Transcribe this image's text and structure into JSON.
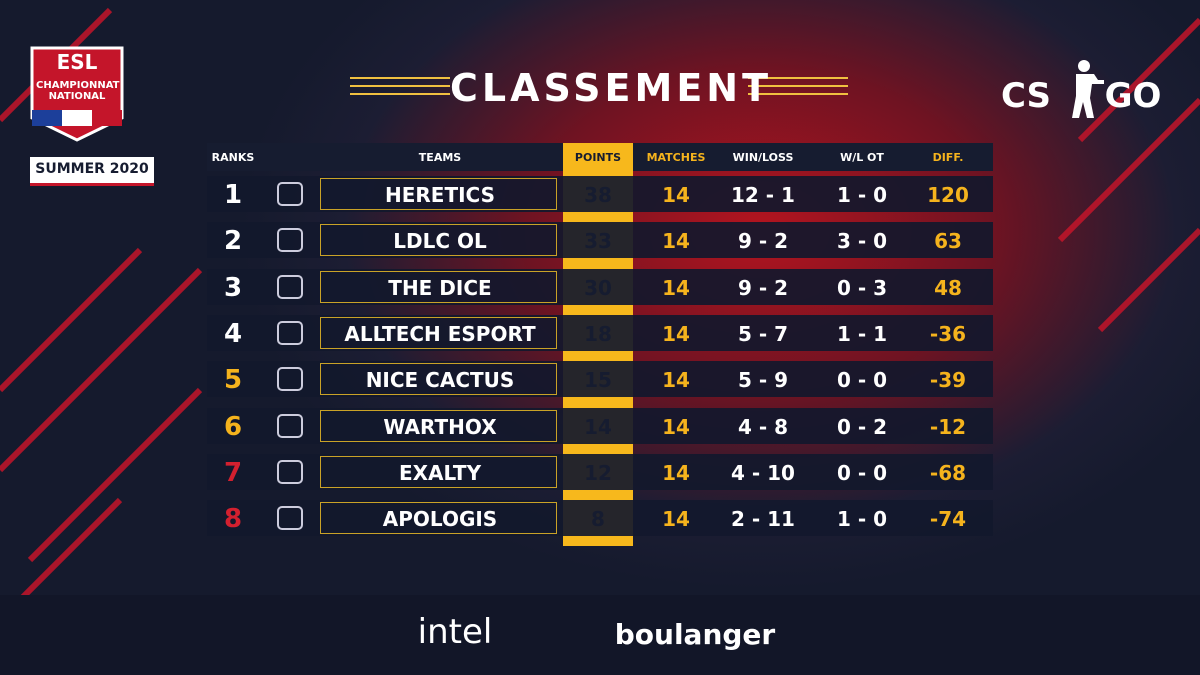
{
  "event_logo": {
    "brand": "ESL",
    "title": "CHAMPIONNAT NATIONAL",
    "season": "SUMMER 2020"
  },
  "title": "CLASSEMENT",
  "game_logo": {
    "left": "CS",
    "right": "GO"
  },
  "table": {
    "columns": [
      "RANKS",
      "TEAMS",
      "POINTS",
      "MATCHES",
      "WIN/LOSS",
      "W/L OT",
      "DIFF."
    ],
    "rows": [
      [
        "1",
        "HERETICS",
        "38",
        "14",
        "12 - 1",
        "1 - 0",
        "120"
      ],
      [
        "2",
        "LDLC OL",
        "33",
        "14",
        "9 - 2",
        "3 - 0",
        "63"
      ],
      [
        "3",
        "THE DICE",
        "30",
        "14",
        "9 - 2",
        "0 - 3",
        "48"
      ],
      [
        "4",
        "ALLTECH ESPORT",
        "18",
        "14",
        "5 - 7",
        "1 - 1",
        "-36"
      ],
      [
        "5",
        "NICE CACTUS",
        "15",
        "14",
        "5 - 9",
        "0 - 0",
        "-39"
      ],
      [
        "6",
        "WARTHOX",
        "14",
        "14",
        "4 - 8",
        "0 - 2",
        "-12"
      ],
      [
        "7",
        "EXALTY",
        "12",
        "14",
        "4 - 10",
        "0 - 0",
        "-68"
      ],
      [
        "8",
        "APOLOGIS",
        "8",
        "14",
        "2 - 11",
        "1 - 0",
        "-74"
      ]
    ],
    "rank_colors": [
      "#ffffff",
      "#ffffff",
      "#ffffff",
      "#ffffff",
      "#f5b31d",
      "#f5b31d",
      "#d3202f",
      "#d3202f"
    ]
  },
  "sponsors": [
    "intel",
    "boulanger"
  ]
}
